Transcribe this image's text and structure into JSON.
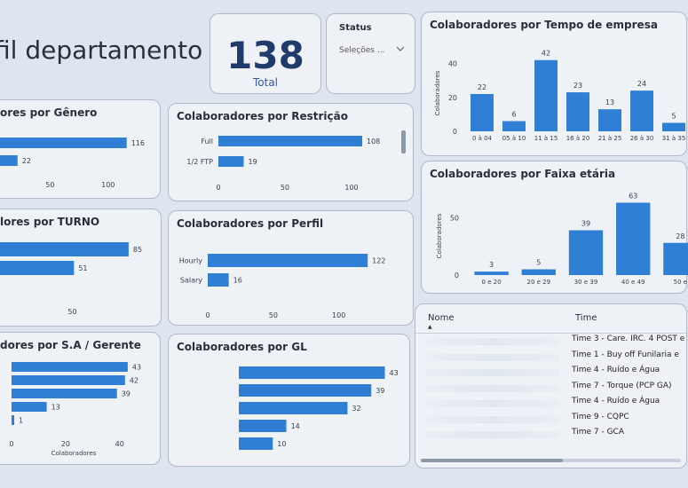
{
  "page_title": "fil departamento",
  "kpi": {
    "value": "138",
    "label": "Total"
  },
  "status_filter": {
    "title": "Status",
    "selected": "Seleções ...",
    "chevron": "chevron-down-icon"
  },
  "colors": {
    "bar": "#2f7fd4",
    "card_bg": "#eef2f7",
    "accent": "#1f3a6b"
  },
  "tempo": {
    "title": "Colaboradores por Tempo de empresa",
    "ylabel": "Colaboradores",
    "yticks": [
      "40",
      "20",
      "0"
    ]
  },
  "faixa": {
    "title": "Colaboradores por Faixa etária",
    "ylabel": "Colaboradores",
    "yticks": [
      "50",
      "0"
    ]
  },
  "genero": {
    "title": "ores por Gênero",
    "ticks": [
      "50",
      "100"
    ]
  },
  "restricao": {
    "title": "Colaboradores por Restrição",
    "ticks": [
      "0",
      "50",
      "100"
    ]
  },
  "turno": {
    "title": "lores por TURNO",
    "ticks": [
      "50"
    ]
  },
  "perfil": {
    "title": "Colaboradores por Perfil",
    "ticks": [
      "0",
      "50",
      "100"
    ]
  },
  "gerente": {
    "title": "dores por S.A / Gerente",
    "ticks": [
      "0",
      "20",
      "40"
    ],
    "xlabel": "Colaboradores"
  },
  "gl": {
    "title": "Colaboradores por GL"
  },
  "table": {
    "col_name": "Nome",
    "col_time": "Time",
    "rows": [
      "Time 3 - Care. IRC. 4 POST e",
      "Time 1 - Buy off Funilaria e",
      "Time 4 - Ruído e Água",
      "Time 7 - Torque (PCP GA)",
      "Time 4 - Ruído e Água",
      "Time 9 - CQPC",
      "Time 7 - GCA"
    ]
  },
  "chart_data": [
    {
      "type": "bar",
      "title": "Colaboradores por Tempo de empresa",
      "ylabel": "Colaboradores",
      "categories": [
        "0 à 04",
        "05 à 10",
        "11 à 15",
        "16 à 20",
        "21 à 25",
        "26 à 30",
        "31 à 35"
      ],
      "values": [
        22,
        6,
        42,
        23,
        13,
        24,
        5
      ],
      "ylim": [
        0,
        45
      ]
    },
    {
      "type": "bar",
      "title": "Colaboradores por Faixa etária",
      "ylabel": "Colaboradores",
      "categories": [
        "0 e 20",
        "20 e 29",
        "30 e 39",
        "40 e 49",
        "50 e"
      ],
      "values": [
        3,
        5,
        39,
        63,
        28
      ],
      "ylim": [
        0,
        68
      ]
    },
    {
      "type": "bar",
      "orientation": "horizontal",
      "title": "ores por Gênero",
      "categories": [
        "",
        ""
      ],
      "values": [
        116,
        22
      ],
      "xlim": [
        0,
        130
      ]
    },
    {
      "type": "bar",
      "orientation": "horizontal",
      "title": "Colaboradores por Restrição",
      "categories": [
        "Full",
        "1/2 FTP"
      ],
      "values": [
        108,
        19
      ],
      "xlim": [
        0,
        120
      ]
    },
    {
      "type": "bar",
      "orientation": "horizontal",
      "title": "lores por TURNO",
      "categories": [
        "",
        ""
      ],
      "values": [
        85,
        51
      ],
      "xlim": [
        0,
        95
      ]
    },
    {
      "type": "bar",
      "orientation": "horizontal",
      "title": "Colaboradores por Perfil",
      "categories": [
        "Hourly",
        "Salary"
      ],
      "values": [
        122,
        16
      ],
      "xlim": [
        0,
        130
      ]
    },
    {
      "type": "bar",
      "orientation": "horizontal",
      "title": "dores por S.A / Gerente",
      "xlabel": "Colaboradores",
      "categories": [
        "",
        "",
        "",
        "",
        ""
      ],
      "values": [
        43,
        42,
        39,
        13,
        1
      ],
      "xlim": [
        0,
        46
      ]
    },
    {
      "type": "bar",
      "orientation": "horizontal",
      "title": "Colaboradores por GL",
      "categories": [
        "",
        "",
        "",
        "",
        ""
      ],
      "values": [
        43,
        39,
        32,
        14,
        10
      ],
      "xlim": [
        0,
        46
      ]
    }
  ]
}
